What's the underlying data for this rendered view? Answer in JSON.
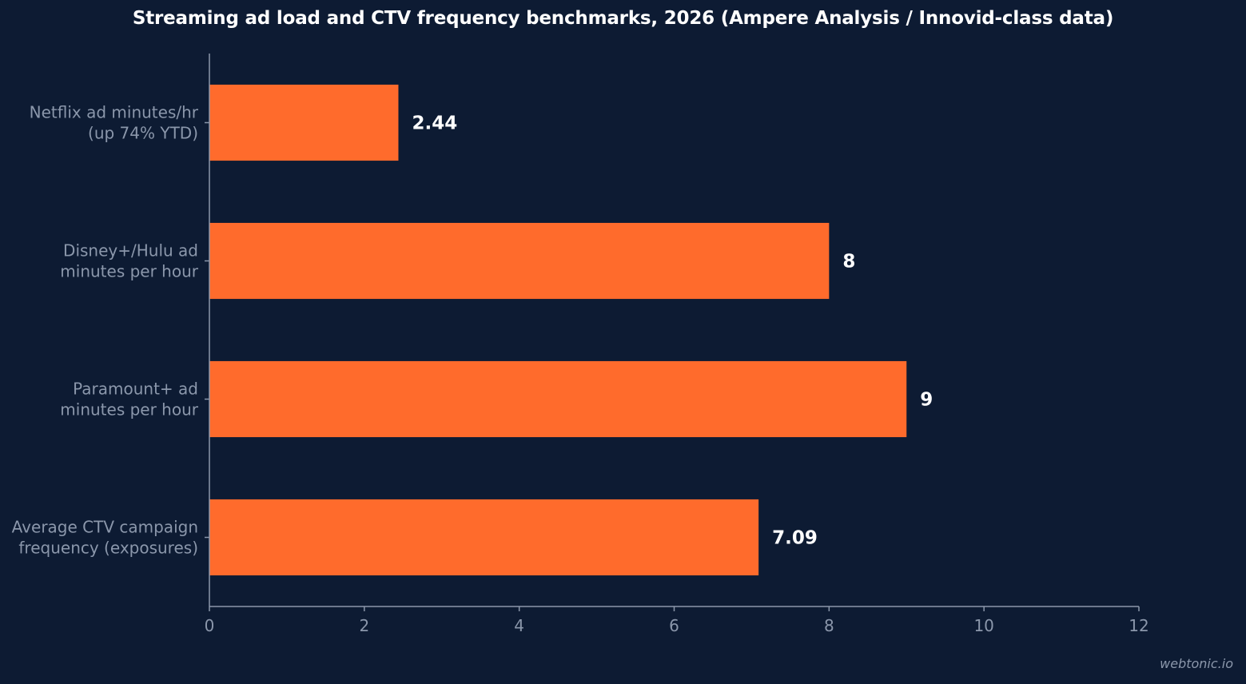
{
  "chart_data": {
    "type": "bar",
    "orientation": "horizontal",
    "title": "Streaming ad load and CTV frequency benchmarks, 2026 (Ampere Analysis / Innovid-class data)",
    "categories": [
      [
        "Netflix ad minutes/hr",
        "(up 74% YTD)"
      ],
      [
        "Disney+/Hulu ad",
        "minutes per hour"
      ],
      [
        "Paramount+ ad",
        "minutes per hour"
      ],
      [
        "Average CTV campaign",
        "frequency (exposures)"
      ]
    ],
    "values": [
      2.44,
      8,
      9,
      7.09
    ],
    "value_labels": [
      "2.44",
      "8",
      "9",
      "7.09"
    ],
    "xlim": [
      0,
      12
    ],
    "xticks": [
      "0",
      "2",
      "4",
      "6",
      "8",
      "10",
      "12"
    ],
    "xlabel": "",
    "ylabel": "",
    "grid": false,
    "legend": "none",
    "colors": {
      "bar": "#ff6b2c",
      "background": "#0d1b33",
      "axis": "#8b97ab",
      "tick_text": "#8b97ab",
      "value_label": "#ffffff"
    }
  },
  "footer": {
    "watermark": "webtonic.io"
  }
}
